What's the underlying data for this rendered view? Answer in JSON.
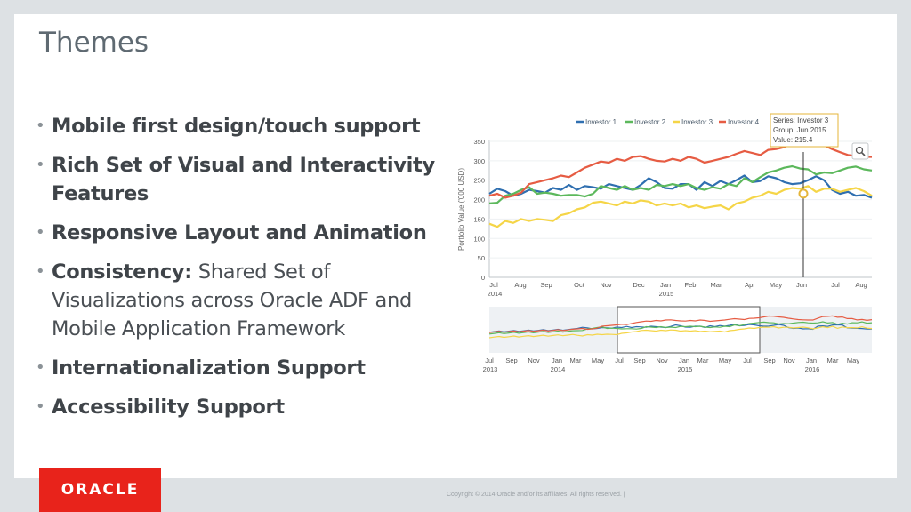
{
  "slide": {
    "title": "Themes",
    "bullets": [
      {
        "bold": "Mobile first design/touch support",
        "text": ""
      },
      {
        "bold": "Rich Set of Visual and Interactivity Features",
        "text": ""
      },
      {
        "bold": "Responsive Layout and Animation",
        "text": ""
      },
      {
        "bold": "Consistency:",
        "text": " Shared Set of Visualizations across Oracle ADF and Mobile Application Framework"
      },
      {
        "bold": "Internationalization Support",
        "text": ""
      },
      {
        "bold": "Accessibility Support",
        "text": ""
      }
    ],
    "bullet_glyph": "•"
  },
  "footer": {
    "logo": "ORACLE",
    "copyright": "Copyright © 2014 Oracle and/or its affiliates. All rights reserved.  |"
  },
  "chart_data": {
    "type": "line",
    "ylabel": "Portfolio Value ('000 USD)",
    "ylim": [
      0,
      350
    ],
    "yticks": [
      0,
      50,
      100,
      150,
      200,
      250,
      300,
      350
    ],
    "x_tick_labels": [
      {
        "label": "Jul",
        "year": "2014"
      },
      {
        "label": "Aug",
        "year": ""
      },
      {
        "label": "Sep",
        "year": ""
      },
      {
        "label": "Oct",
        "year": ""
      },
      {
        "label": "Nov",
        "year": ""
      },
      {
        "label": "Dec",
        "year": ""
      },
      {
        "label": "Jan",
        "year": "2015"
      },
      {
        "label": "Feb",
        "year": ""
      },
      {
        "label": "Mar",
        "year": ""
      },
      {
        "label": "Apr",
        "year": ""
      },
      {
        "label": "May",
        "year": ""
      },
      {
        "label": "Jun",
        "year": ""
      },
      {
        "label": "Jul",
        "year": ""
      },
      {
        "label": "Aug",
        "year": ""
      }
    ],
    "legend_position": "top",
    "series": [
      {
        "name": "Investor 1",
        "color": "#2f6fb0",
        "values": [
          215,
          228,
          222,
          210,
          215,
          225,
          222,
          218,
          230,
          225,
          238,
          225,
          235,
          232,
          228,
          240,
          235,
          230,
          225,
          238,
          255,
          245,
          230,
          228,
          240,
          240,
          225,
          245,
          235,
          248,
          240,
          250,
          262,
          245,
          248,
          260,
          255,
          245,
          240,
          242,
          250,
          260,
          250,
          225,
          215,
          220,
          210,
          212,
          205
        ]
      },
      {
        "name": "Investor 2",
        "color": "#5cb85c",
        "values": [
          190,
          192,
          210,
          215,
          225,
          232,
          215,
          218,
          215,
          210,
          212,
          212,
          208,
          215,
          235,
          230,
          225,
          235,
          225,
          230,
          225,
          238,
          235,
          240,
          235,
          240,
          230,
          225,
          232,
          228,
          240,
          235,
          255,
          245,
          258,
          270,
          275,
          282,
          286,
          280,
          278,
          265,
          270,
          268,
          275,
          282,
          285,
          278,
          275
        ]
      },
      {
        "name": "Investor 3",
        "color": "#f5d547",
        "values": [
          138,
          130,
          145,
          140,
          150,
          145,
          150,
          148,
          145,
          160,
          165,
          175,
          180,
          192,
          195,
          190,
          185,
          195,
          190,
          198,
          195,
          185,
          190,
          185,
          190,
          180,
          185,
          178,
          182,
          185,
          175,
          190,
          195,
          205,
          210,
          220,
          215,
          225,
          230,
          228,
          235,
          220,
          228,
          228,
          220,
          225,
          230,
          222,
          210
        ]
      },
      {
        "name": "Investor 4",
        "color": "#e65c43",
        "values": [
          210,
          215,
          205,
          210,
          218,
          240,
          245,
          250,
          255,
          262,
          258,
          270,
          282,
          290,
          298,
          295,
          305,
          300,
          310,
          312,
          305,
          300,
          298,
          305,
          300,
          310,
          305,
          295,
          300,
          305,
          310,
          318,
          325,
          320,
          315,
          328,
          330,
          335,
          345,
          355,
          352,
          345,
          340,
          330,
          322,
          315,
          312,
          310,
          310
        ]
      }
    ],
    "tooltip": {
      "series": "Series: Investor 3",
      "group": "Group: Jun 2015",
      "value": "Value: 215.4"
    },
    "overview": {
      "x_tick_labels": [
        {
          "label": "Jul",
          "year": "2013"
        },
        {
          "label": "Sep",
          "year": ""
        },
        {
          "label": "Nov",
          "year": ""
        },
        {
          "label": "Jan",
          "year": "2014"
        },
        {
          "label": "Mar",
          "year": ""
        },
        {
          "label": "May",
          "year": ""
        },
        {
          "label": "Jul",
          "year": ""
        },
        {
          "label": "Sep",
          "year": ""
        },
        {
          "label": "Nov",
          "year": ""
        },
        {
          "label": "Jan",
          "year": "2015"
        },
        {
          "label": "Mar",
          "year": ""
        },
        {
          "label": "May",
          "year": ""
        },
        {
          "label": "Jul",
          "year": ""
        },
        {
          "label": "Sep",
          "year": ""
        },
        {
          "label": "Nov",
          "year": ""
        },
        {
          "label": "Jan",
          "year": "2016"
        },
        {
          "label": "Mar",
          "year": ""
        },
        {
          "label": "May",
          "year": ""
        }
      ]
    },
    "zoom_icon": "magnifier-icon"
  }
}
